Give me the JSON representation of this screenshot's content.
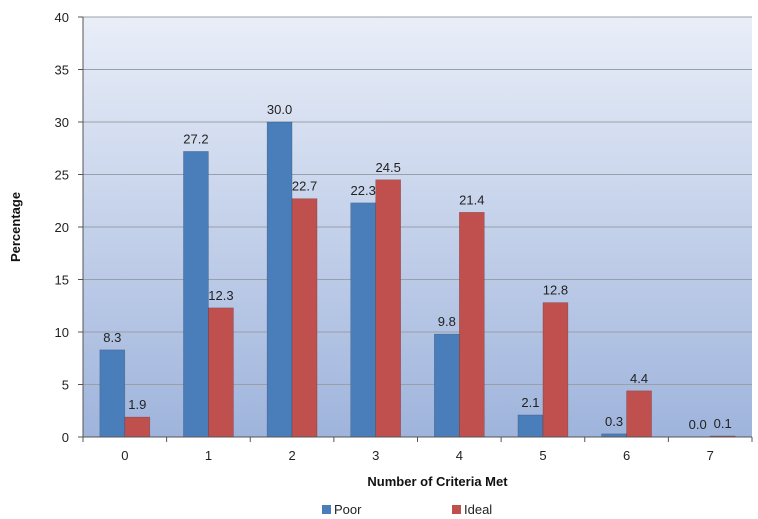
{
  "chart_data": {
    "type": "bar",
    "title": "",
    "xlabel": "Number of Criteria Met",
    "ylabel": "Percentage",
    "ylim": [
      0,
      40
    ],
    "yticks": [
      0,
      5,
      10,
      15,
      20,
      25,
      30,
      35,
      40
    ],
    "categories": [
      "0",
      "1",
      "2",
      "3",
      "4",
      "5",
      "6",
      "7"
    ],
    "grid": true,
    "legend": "bottom",
    "series": [
      {
        "name": "Poor",
        "color": "#4a7ebb",
        "values": [
          8.3,
          27.2,
          30.0,
          22.3,
          9.8,
          2.1,
          0.3,
          0.0
        ],
        "labels": [
          "8.3",
          "27.2",
          "30.0",
          "22.3",
          "9.8",
          "2.1",
          "0.3",
          "0.0"
        ]
      },
      {
        "name": "Ideal",
        "color": "#c0504d",
        "values": [
          1.9,
          12.3,
          22.7,
          24.5,
          21.4,
          12.8,
          4.4,
          0.1
        ],
        "labels": [
          "1.9",
          "12.3",
          "22.7",
          "24.5",
          "21.4",
          "12.8",
          "4.4",
          "0.1"
        ]
      }
    ]
  }
}
